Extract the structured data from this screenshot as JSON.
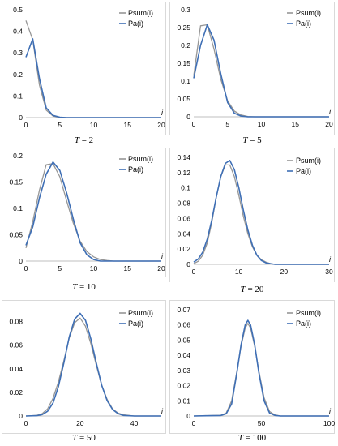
{
  "colors": {
    "psum": "#969696",
    "pa": "#3f6fb5",
    "axis": "#bfbfbf",
    "frame": "#d9d9d9"
  },
  "chart_data": [
    {
      "type": "line",
      "caption_var": "T",
      "caption_rest": " = 2",
      "xlabel": "i",
      "xlim": [
        0,
        20
      ],
      "ylim": [
        0,
        0.5
      ],
      "xticks": [
        "0",
        "5",
        "10",
        "15",
        "20"
      ],
      "yticks": [
        "0",
        "0.1",
        "0.2",
        "0.3",
        "0.4",
        "0.5"
      ],
      "legend": [
        "Psum(i)",
        "Pa(i)"
      ],
      "series": [
        {
          "name": "Psum(i)",
          "x": [
            0,
            1,
            2,
            3,
            4,
            5,
            6,
            7,
            8,
            9,
            10,
            11,
            12,
            13,
            14,
            15,
            16,
            17,
            18,
            19,
            20
          ],
          "y": [
            0.45,
            0.36,
            0.15,
            0.035,
            0.007,
            0.001,
            0,
            0,
            0,
            0,
            0,
            0,
            0,
            0,
            0,
            0,
            0,
            0,
            0,
            0,
            0
          ]
        },
        {
          "name": "Pa(i)",
          "x": [
            0,
            1,
            2,
            3,
            4,
            5,
            6,
            7,
            8,
            9,
            10,
            11,
            12,
            13,
            14,
            15,
            16,
            17,
            18,
            19,
            20
          ],
          "y": [
            0.28,
            0.365,
            0.18,
            0.045,
            0.01,
            0.002,
            0,
            0,
            0,
            0,
            0,
            0,
            0,
            0,
            0,
            0,
            0,
            0,
            0,
            0,
            0
          ]
        }
      ]
    },
    {
      "type": "line",
      "caption_var": "T",
      "caption_rest": " = 5",
      "xlabel": "i",
      "xlim": [
        0,
        20
      ],
      "ylim": [
        0,
        0.3
      ],
      "xticks": [
        "0",
        "5",
        "10",
        "15",
        "20"
      ],
      "yticks": [
        "0",
        "0.05",
        "0.1",
        "0.15",
        "0.2",
        "0.25",
        "0.3"
      ],
      "legend": [
        "Psum(i)",
        "Pa(i)"
      ],
      "series": [
        {
          "name": "Psum(i)",
          "x": [
            0,
            1,
            2,
            3,
            4,
            5,
            6,
            7,
            8,
            9,
            10,
            11,
            12,
            13,
            14,
            15,
            16,
            17,
            18,
            19,
            20
          ],
          "y": [
            0.115,
            0.255,
            0.258,
            0.19,
            0.105,
            0.045,
            0.016,
            0.005,
            0.001,
            0,
            0,
            0,
            0,
            0,
            0,
            0,
            0,
            0,
            0,
            0,
            0
          ]
        },
        {
          "name": "Pa(i)",
          "x": [
            0,
            1,
            2,
            3,
            4,
            5,
            6,
            7,
            8,
            9,
            10,
            11,
            12,
            13,
            14,
            15,
            16,
            17,
            18,
            19,
            20
          ],
          "y": [
            0.108,
            0.2,
            0.258,
            0.215,
            0.12,
            0.04,
            0.01,
            0.002,
            0,
            0,
            0,
            0,
            0,
            0,
            0,
            0,
            0,
            0,
            0,
            0,
            0
          ]
        }
      ]
    },
    {
      "type": "line",
      "caption_var": "T",
      "caption_rest": " = 10",
      "xlabel": "i",
      "xlim": [
        0,
        20
      ],
      "ylim": [
        0,
        0.2
      ],
      "xticks": [
        "0",
        "5",
        "10",
        "15",
        "20"
      ],
      "yticks": [
        "0",
        "0.05",
        "0.1",
        "0.15",
        "0.2"
      ],
      "legend": [
        "Psum(i)",
        "Pa(i)"
      ],
      "series": [
        {
          "name": "Psum(i)",
          "x": [
            0,
            1,
            2,
            3,
            4,
            5,
            6,
            7,
            8,
            9,
            10,
            11,
            12,
            13,
            14,
            15,
            16,
            17,
            18,
            19,
            20
          ],
          "y": [
            0.025,
            0.075,
            0.135,
            0.183,
            0.185,
            0.16,
            0.115,
            0.072,
            0.038,
            0.018,
            0.008,
            0.003,
            0.001,
            0,
            0,
            0,
            0,
            0,
            0,
            0,
            0
          ]
        },
        {
          "name": "Pa(i)",
          "x": [
            0,
            1,
            2,
            3,
            4,
            5,
            6,
            7,
            8,
            9,
            10,
            11,
            12,
            13,
            14,
            15,
            16,
            17,
            18,
            19,
            20
          ],
          "y": [
            0.03,
            0.065,
            0.12,
            0.165,
            0.188,
            0.172,
            0.13,
            0.08,
            0.035,
            0.012,
            0.003,
            0,
            0,
            0,
            0,
            0,
            0,
            0,
            0,
            0,
            0
          ]
        }
      ]
    },
    {
      "type": "line",
      "caption_var": "T",
      "caption_rest": " = 20",
      "xlabel": "i",
      "xlim": [
        0,
        30
      ],
      "ylim": [
        0,
        0.14
      ],
      "xticks": [
        "0",
        "10",
        "20",
        "30"
      ],
      "yticks": [
        "0",
        "0.02",
        "0.04",
        "0.06",
        "0.08",
        "0.1",
        "0.12",
        "0.14"
      ],
      "legend": [
        "Psum(i)",
        "Pa(i)"
      ],
      "series": [
        {
          "name": "Psum(i)",
          "x": [
            0,
            1,
            2,
            3,
            4,
            5,
            6,
            7,
            8,
            9,
            10,
            11,
            12,
            13,
            14,
            15,
            16,
            17,
            18,
            19,
            20,
            21,
            22,
            23,
            24,
            25,
            26,
            27,
            28,
            29,
            30
          ],
          "y": [
            0.001,
            0.004,
            0.012,
            0.028,
            0.055,
            0.088,
            0.115,
            0.13,
            0.13,
            0.115,
            0.09,
            0.063,
            0.04,
            0.023,
            0.012,
            0.006,
            0.003,
            0.001,
            0,
            0,
            0,
            0,
            0,
            0,
            0,
            0,
            0,
            0,
            0,
            0,
            0
          ]
        },
        {
          "name": "Pa(i)",
          "x": [
            0,
            1,
            2,
            3,
            4,
            5,
            6,
            7,
            8,
            9,
            10,
            11,
            12,
            13,
            14,
            15,
            16,
            17,
            18,
            19,
            20,
            21,
            22,
            23,
            24,
            25,
            26,
            27,
            28,
            29,
            30
          ],
          "y": [
            0.003,
            0.007,
            0.016,
            0.033,
            0.058,
            0.088,
            0.115,
            0.132,
            0.136,
            0.124,
            0.1,
            0.071,
            0.045,
            0.025,
            0.012,
            0.005,
            0.002,
            0.001,
            0,
            0,
            0,
            0,
            0,
            0,
            0,
            0,
            0,
            0,
            0,
            0,
            0
          ]
        }
      ]
    },
    {
      "type": "line",
      "caption_var": "T",
      "caption_rest": " = 50",
      "xlabel": "i",
      "xlim": [
        0,
        50
      ],
      "ylim": [
        0,
        0.09
      ],
      "xticks": [
        "0",
        "20",
        "40"
      ],
      "yticks": [
        "0",
        "0.02",
        "0.04",
        "0.06",
        "0.08"
      ],
      "legend": [
        "Psum(i)",
        "Pa(i)"
      ],
      "series": [
        {
          "name": "Psum(i)",
          "x": [
            0,
            4,
            6,
            8,
            10,
            12,
            14,
            16,
            18,
            20,
            22,
            24,
            26,
            28,
            30,
            32,
            34,
            36,
            40,
            50
          ],
          "y": [
            0,
            0.0005,
            0.002,
            0.006,
            0.015,
            0.029,
            0.047,
            0.066,
            0.079,
            0.083,
            0.076,
            0.061,
            0.043,
            0.026,
            0.014,
            0.006,
            0.0025,
            0.001,
            0,
            0
          ]
        },
        {
          "name": "Pa(i)",
          "x": [
            0,
            4,
            6,
            8,
            10,
            12,
            14,
            16,
            18,
            20,
            22,
            24,
            26,
            28,
            30,
            32,
            34,
            36,
            40,
            50
          ],
          "y": [
            0,
            0.0003,
            0.0012,
            0.004,
            0.011,
            0.025,
            0.045,
            0.067,
            0.082,
            0.087,
            0.081,
            0.065,
            0.045,
            0.026,
            0.013,
            0.0055,
            0.002,
            0.0005,
            0,
            0
          ]
        }
      ]
    },
    {
      "type": "line",
      "caption_var": "T",
      "caption_rest": " = 100",
      "xlabel": "i",
      "xlim": [
        0,
        100
      ],
      "ylim": [
        0,
        0.07
      ],
      "xticks": [
        "0",
        "50",
        "100"
      ],
      "yticks": [
        "0",
        "0.01",
        "0.02",
        "0.03",
        "0.04",
        "0.05",
        "0.06",
        "0.07"
      ],
      "legend": [
        "Psum(i)",
        "Pa(i)"
      ],
      "series": [
        {
          "name": "Psum(i)",
          "x": [
            0,
            20,
            24,
            28,
            32,
            35,
            38,
            40,
            42,
            45,
            48,
            52,
            56,
            60,
            64,
            100
          ],
          "y": [
            0,
            0.0005,
            0.002,
            0.01,
            0.03,
            0.046,
            0.058,
            0.061,
            0.058,
            0.046,
            0.03,
            0.012,
            0.003,
            0.0007,
            0,
            0
          ]
        },
        {
          "name": "Pa(i)",
          "x": [
            0,
            20,
            24,
            28,
            32,
            35,
            38,
            40,
            42,
            45,
            48,
            52,
            56,
            60,
            64,
            100
          ],
          "y": [
            0,
            0.0003,
            0.0015,
            0.008,
            0.029,
            0.047,
            0.06,
            0.063,
            0.06,
            0.047,
            0.029,
            0.01,
            0.002,
            0.0004,
            0,
            0
          ]
        }
      ]
    }
  ]
}
